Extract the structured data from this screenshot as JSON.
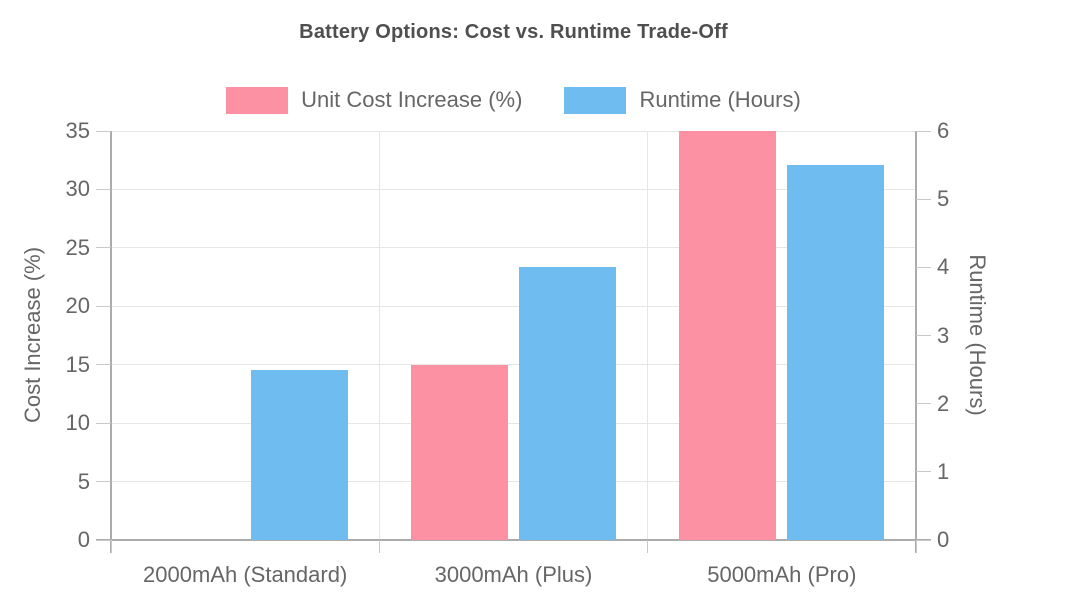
{
  "chart_data": {
    "type": "bar",
    "title": "Battery Options: Cost vs. Runtime Trade-Off",
    "categories": [
      "2000mAh (Standard)",
      "3000mAh (Plus)",
      "5000mAh (Pro)"
    ],
    "series": [
      {
        "name": "Unit Cost Increase (%)",
        "color": "#FC91A3",
        "axis": "left",
        "values": [
          0,
          15,
          35
        ]
      },
      {
        "name": "Runtime (Hours)",
        "color": "#6FBCF0",
        "axis": "right",
        "values": [
          2.5,
          4.0,
          5.5
        ]
      }
    ],
    "axes": {
      "left": {
        "label": "Cost Increase (%)",
        "min": 0,
        "max": 35,
        "ticks": [
          0,
          5,
          10,
          15,
          20,
          25,
          30,
          35
        ]
      },
      "right": {
        "label": "Runtime (Hours)",
        "min": 0,
        "max": 6,
        "ticks": [
          0,
          1,
          2,
          3,
          4,
          5,
          6
        ]
      }
    },
    "legend_position": "top",
    "grid": true,
    "colors": {
      "grid": "#e6e6e6",
      "axis": "#ababab",
      "text": "#666666",
      "title": "#4f4f4f"
    }
  }
}
